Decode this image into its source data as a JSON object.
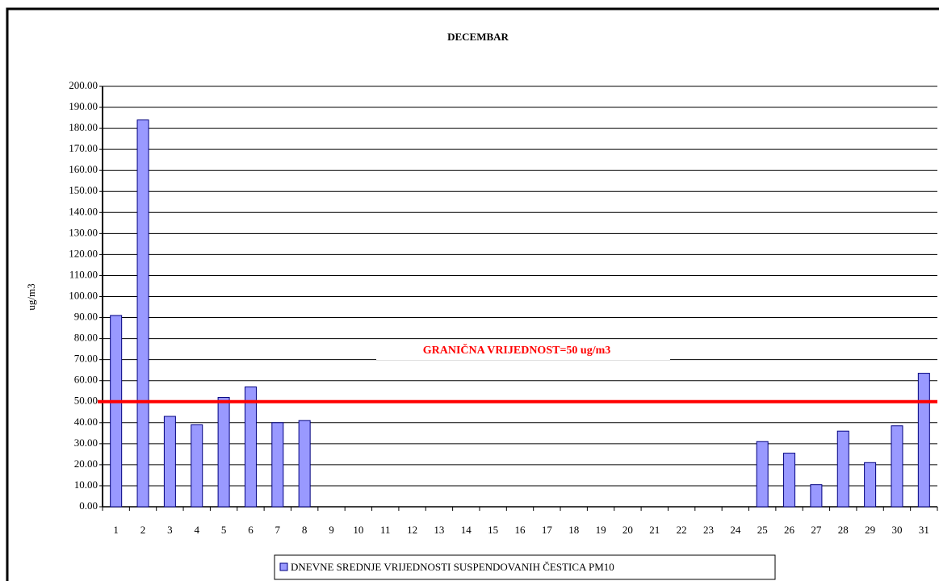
{
  "chart_data": {
    "type": "bar",
    "title": "DECEMBAR",
    "y_label": "ug/m3",
    "categories": [
      "1",
      "2",
      "3",
      "4",
      "5",
      "6",
      "7",
      "8",
      "9",
      "10",
      "11",
      "12",
      "13",
      "14",
      "15",
      "16",
      "17",
      "18",
      "19",
      "20",
      "21",
      "22",
      "23",
      "24",
      "25",
      "26",
      "27",
      "28",
      "29",
      "30",
      "31"
    ],
    "series": [
      {
        "name": "DNEVNE SREDNJE VRIJEDNOSTI SUSPENDOVANIH ČESTICA PM10",
        "color": "#9999ff",
        "values": [
          91,
          184,
          43,
          39,
          52,
          57,
          40,
          41,
          null,
          null,
          null,
          null,
          null,
          null,
          null,
          null,
          null,
          null,
          null,
          null,
          null,
          null,
          null,
          null,
          31,
          25.5,
          10.5,
          36,
          21,
          38.5,
          63.5
        ]
      }
    ],
    "ylim": [
      0,
      200
    ],
    "yticks": [
      {
        "value": 0,
        "label": "0.00"
      },
      {
        "value": 10,
        "label": "10.00"
      },
      {
        "value": 20,
        "label": "20.00"
      },
      {
        "value": 30,
        "label": "30.00"
      },
      {
        "value": 40,
        "label": "40.00"
      },
      {
        "value": 50,
        "label": "50.00"
      },
      {
        "value": 60,
        "label": "60.00"
      },
      {
        "value": 70,
        "label": "70.00"
      },
      {
        "value": 80,
        "label": "80.00"
      },
      {
        "value": 90,
        "label": "90.00"
      },
      {
        "value": 100,
        "label": "100.00"
      },
      {
        "value": 110,
        "label": "110.00"
      },
      {
        "value": 120,
        "label": "120.00"
      },
      {
        "value": 130,
        "label": "130.00"
      },
      {
        "value": 140,
        "label": "140.00"
      },
      {
        "value": 150,
        "label": "150.00"
      },
      {
        "value": 160,
        "label": "160.00"
      },
      {
        "value": 170,
        "label": "170.00"
      },
      {
        "value": 180,
        "label": "180.00"
      },
      {
        "value": 190,
        "label": "190.00"
      },
      {
        "value": 200,
        "label": "200.00"
      }
    ],
    "grid": true,
    "threshold": {
      "value": 50,
      "label": "GRANIČNA VRIJEDNOST=50 ug/m3",
      "color": "#ff0000"
    },
    "legend": "bottom"
  }
}
